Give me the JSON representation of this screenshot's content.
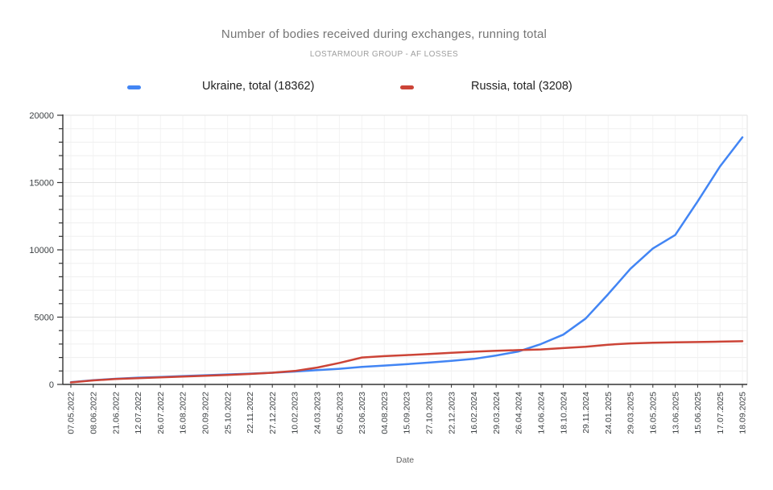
{
  "header": {
    "title": "Number of bodies received during exchanges, running total",
    "subtitle": "LOSTARMOUR GROUP - AF LOSSES"
  },
  "legend": {
    "items": [
      {
        "label": "Ukraine, total (18362)",
        "color": "#4285f4"
      },
      {
        "label": "Russia, total (3208)",
        "color": "#cc4437"
      }
    ],
    "position": "top"
  },
  "chart_data": {
    "type": "line",
    "title": "Number of bodies received during exchanges, running total",
    "subtitle": "LOSTARMOUR GROUP - AF LOSSES",
    "xlabel": "Date",
    "ylabel": "",
    "ylim": [
      0,
      20000
    ],
    "y_major_ticks": [
      0,
      5000,
      10000,
      15000,
      20000
    ],
    "y_minor_step": 1000,
    "grid": true,
    "legend_position": "top",
    "categories": [
      "07.05.2022",
      "08.06.2022",
      "21.06.2022",
      "12.07.2022",
      "26.07.2022",
      "16.08.2022",
      "20.09.2022",
      "25.10.2022",
      "22.11.2022",
      "27.12.2022",
      "10.02.2023",
      "24.03.2023",
      "05.05.2023",
      "23.06.2023",
      "04.08.2023",
      "15.09.2023",
      "27.10.2023",
      "22.12.2023",
      "16.02.2024",
      "29.03.2024",
      "26.04.2024",
      "14.06.2024",
      "18.10.2024",
      "29.11.2024",
      "24.01.2025",
      "29.03.2025",
      "16.05.2025",
      "13.06.2025",
      "15.06.2025",
      "17.07.2025",
      "18.09.2025"
    ],
    "series": [
      {
        "name": "Ukraine, total (18362)",
        "final_total": 18362,
        "color": "#4285f4",
        "values": [
          160,
          320,
          420,
          500,
          550,
          620,
          680,
          740,
          800,
          870,
          960,
          1060,
          1160,
          1300,
          1400,
          1500,
          1620,
          1750,
          1900,
          2150,
          2450,
          3000,
          3700,
          4900,
          6700,
          8600,
          10100,
          11100,
          13600,
          16200,
          18362
        ]
      },
      {
        "name": "Russia, total (3208)",
        "final_total": 3208,
        "color": "#cc4437",
        "values": [
          150,
          300,
          400,
          470,
          520,
          580,
          640,
          700,
          780,
          870,
          1000,
          1250,
          1600,
          2000,
          2100,
          2180,
          2260,
          2350,
          2430,
          2500,
          2550,
          2600,
          2700,
          2800,
          2950,
          3050,
          3100,
          3130,
          3150,
          3180,
          3208
        ]
      }
    ]
  },
  "colors": {
    "axis": "#333333",
    "grid_major": "#e2e2e2",
    "grid_minor": "#efefef",
    "grid_vertical": "#f3f3f3",
    "tick_label": "#3c4043"
  }
}
